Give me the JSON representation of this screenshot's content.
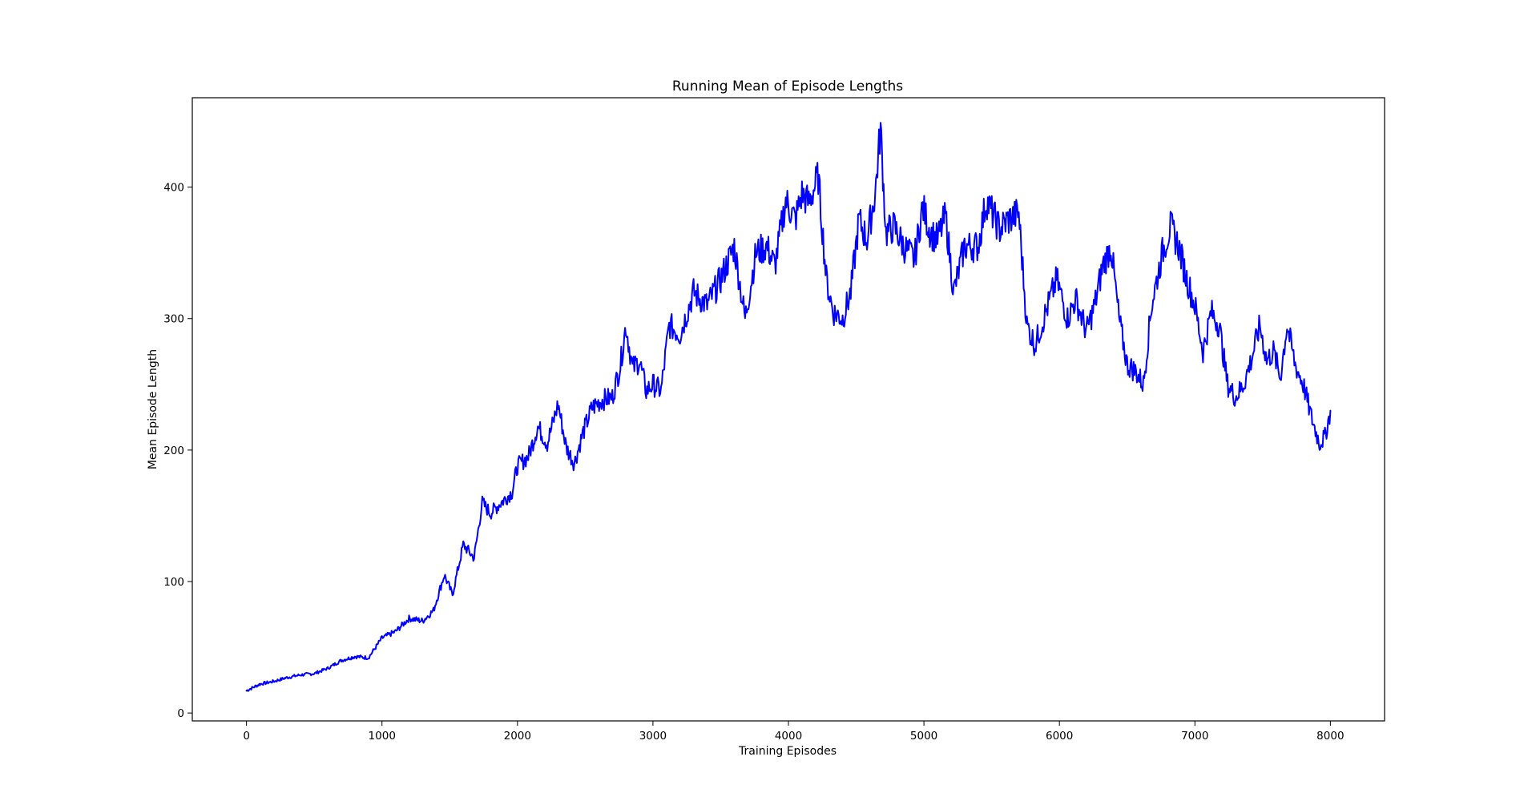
{
  "chart_data": {
    "type": "line",
    "title": "Running Mean of Episode Lengths",
    "xlabel": "Training Episodes",
    "ylabel": "Mean Episode Length",
    "xlim": [
      -400,
      8400
    ],
    "ylim": [
      -6,
      468
    ],
    "x_ticks": [
      0,
      1000,
      2000,
      3000,
      4000,
      5000,
      6000,
      7000,
      8000
    ],
    "y_ticks": [
      0,
      100,
      200,
      300,
      400
    ],
    "grid": false,
    "legend": "none",
    "series": [
      {
        "color": "#0000ff",
        "x": [
          0,
          100,
          200,
          300,
          400,
          500,
          600,
          700,
          800,
          900,
          1000,
          1100,
          1200,
          1300,
          1380,
          1460,
          1520,
          1600,
          1680,
          1740,
          1800,
          1900,
          1960,
          2000,
          2080,
          2150,
          2220,
          2300,
          2360,
          2420,
          2480,
          2550,
          2620,
          2700,
          2760,
          2800,
          2850,
          2900,
          2950,
          3000,
          3060,
          3120,
          3200,
          3300,
          3400,
          3500,
          3600,
          3680,
          3760,
          3840,
          3900,
          3980,
          4050,
          4100,
          4150,
          4220,
          4280,
          4330,
          4400,
          4460,
          4520,
          4580,
          4640,
          4680,
          4720,
          4780,
          4850,
          4930,
          4990,
          5050,
          5100,
          5160,
          5220,
          5300,
          5400,
          5460,
          5560,
          5620,
          5700,
          5760,
          5820,
          5900,
          5980,
          6060,
          6120,
          6200,
          6260,
          6320,
          6380,
          6440,
          6500,
          6560,
          6620,
          6680,
          6760,
          6820,
          6880,
          6940,
          7000,
          7060,
          7120,
          7180,
          7240,
          7300,
          7360,
          7420,
          7480,
          7530,
          7580,
          7630,
          7680,
          7740,
          7800,
          7860,
          7920,
          7960,
          8000
        ],
        "values": [
          17,
          22,
          24,
          27,
          29,
          30,
          34,
          40,
          43,
          42,
          57,
          62,
          72,
          70,
          78,
          105,
          90,
          128,
          118,
          160,
          152,
          162,
          168,
          188,
          195,
          218,
          205,
          235,
          202,
          190,
          212,
          232,
          238,
          240,
          265,
          295,
          262,
          268,
          245,
          250,
          245,
          295,
          288,
          320,
          310,
          330,
          355,
          300,
          350,
          355,
          340,
          390,
          375,
          395,
          388,
          408,
          330,
          305,
          300,
          320,
          375,
          360,
          395,
          445,
          365,
          370,
          355,
          345,
          385,
          365,
          360,
          378,
          320,
          355,
          355,
          390,
          368,
          375,
          380,
          295,
          280,
          305,
          330,
          300,
          315,
          290,
          310,
          340,
          355,
          300,
          265,
          260,
          250,
          310,
          350,
          370,
          355,
          330,
          310,
          275,
          305,
          295,
          250,
          240,
          250,
          270,
          295,
          268,
          275,
          255,
          295,
          265,
          250,
          225,
          205,
          210,
          230
        ]
      }
    ]
  }
}
